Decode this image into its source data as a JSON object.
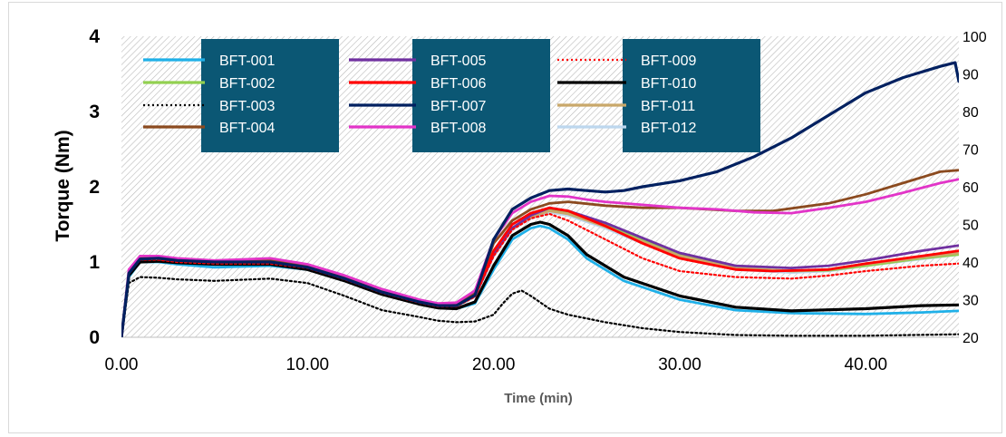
{
  "chart_data": {
    "type": "line",
    "title": "",
    "xlabel": "Time (min)",
    "ylabel": "Torque (Nm)",
    "xlim": [
      0,
      45
    ],
    "ylim": [
      0,
      4
    ],
    "y2lim": [
      20,
      100
    ],
    "xticks": [
      "0.00",
      "10.00",
      "20.00",
      "30.00",
      "40.00"
    ],
    "yticks": [
      "0",
      "1",
      "2",
      "3",
      "4"
    ],
    "y2ticks": [
      "20",
      "30",
      "40",
      "50",
      "60",
      "70",
      "80",
      "90",
      "100"
    ],
    "legend": "top",
    "grid": false,
    "background": "diagonal-hatch",
    "series": [
      {
        "name": "BFT-001",
        "color": "#1fb0e8",
        "dash": "solid",
        "x": [
          0,
          0.4,
          1,
          2,
          3,
          5,
          8,
          10,
          12,
          14,
          16,
          17,
          18,
          19,
          20,
          21,
          22,
          22.5,
          23,
          24,
          25,
          27,
          30,
          33,
          36,
          40,
          43,
          45
        ],
        "y": [
          0,
          0.8,
          1.0,
          1.0,
          0.97,
          0.93,
          0.95,
          0.9,
          0.75,
          0.58,
          0.45,
          0.4,
          0.38,
          0.45,
          0.9,
          1.3,
          1.45,
          1.48,
          1.45,
          1.3,
          1.05,
          0.75,
          0.5,
          0.36,
          0.32,
          0.31,
          0.33,
          0.35
        ]
      },
      {
        "name": "BFT-002",
        "color": "#92d050",
        "dash": "solid",
        "x": [
          0,
          0.4,
          1,
          2,
          3,
          5,
          8,
          10,
          12,
          14,
          16,
          17,
          18,
          19,
          20,
          21,
          22,
          23,
          24,
          26,
          28,
          30,
          33,
          36,
          38,
          40,
          43,
          45
        ],
        "y": [
          0,
          0.85,
          1.04,
          1.05,
          1.02,
          1.0,
          1.0,
          0.93,
          0.78,
          0.6,
          0.47,
          0.42,
          0.42,
          0.55,
          1.1,
          1.45,
          1.62,
          1.7,
          1.66,
          1.5,
          1.3,
          1.1,
          0.92,
          0.88,
          0.89,
          0.95,
          1.05,
          1.1
        ]
      },
      {
        "name": "BFT-003",
        "color": "#000000",
        "dash": "dot",
        "x": [
          0,
          0.4,
          1,
          2,
          3,
          5,
          8,
          10,
          12,
          14,
          16,
          17,
          18,
          19,
          20,
          20.5,
          21,
          21.5,
          22,
          23,
          24,
          26,
          28,
          30,
          33,
          36,
          40,
          45
        ],
        "y": [
          0,
          0.72,
          0.8,
          0.79,
          0.77,
          0.75,
          0.78,
          0.72,
          0.55,
          0.36,
          0.27,
          0.22,
          0.2,
          0.21,
          0.3,
          0.45,
          0.58,
          0.62,
          0.55,
          0.38,
          0.3,
          0.2,
          0.12,
          0.07,
          0.03,
          0.02,
          0.02,
          0.04
        ]
      },
      {
        "name": "BFT-004",
        "color": "#8b4a1f",
        "dash": "solid",
        "x": [
          0,
          0.4,
          1,
          2,
          3,
          5,
          8,
          10,
          12,
          14,
          16,
          17,
          18,
          19,
          20,
          21,
          22,
          23,
          24,
          26,
          28,
          30,
          33,
          35,
          38,
          40,
          42,
          44,
          45
        ],
        "y": [
          0,
          0.85,
          1.05,
          1.05,
          1.03,
          1.0,
          1.02,
          0.95,
          0.8,
          0.62,
          0.48,
          0.43,
          0.44,
          0.6,
          1.25,
          1.55,
          1.7,
          1.78,
          1.8,
          1.75,
          1.72,
          1.72,
          1.68,
          1.68,
          1.78,
          1.9,
          2.05,
          2.2,
          2.22
        ]
      },
      {
        "name": "BFT-005",
        "color": "#7030a0",
        "dash": "solid",
        "x": [
          0,
          0.4,
          1,
          2,
          3,
          5,
          8,
          10,
          12,
          14,
          16,
          17,
          18,
          19,
          20,
          21,
          22,
          23,
          24,
          26,
          28,
          30,
          33,
          36,
          38,
          40,
          43,
          45
        ],
        "y": [
          0,
          0.85,
          1.04,
          1.05,
          1.02,
          1.0,
          1.0,
          0.93,
          0.78,
          0.6,
          0.47,
          0.42,
          0.42,
          0.55,
          1.1,
          1.45,
          1.62,
          1.72,
          1.68,
          1.52,
          1.32,
          1.12,
          0.95,
          0.92,
          0.95,
          1.02,
          1.15,
          1.22
        ]
      },
      {
        "name": "BFT-006",
        "color": "#ff0000",
        "dash": "solid",
        "x": [
          0,
          0.4,
          1,
          2,
          3,
          5,
          8,
          10,
          12,
          14,
          16,
          17,
          18,
          19,
          20,
          21,
          22,
          23,
          24,
          26,
          28,
          30,
          33,
          35,
          38,
          40,
          43,
          45
        ],
        "y": [
          0,
          0.85,
          1.05,
          1.05,
          1.02,
          1.0,
          1.0,
          0.93,
          0.78,
          0.6,
          0.47,
          0.42,
          0.42,
          0.56,
          1.15,
          1.5,
          1.65,
          1.72,
          1.68,
          1.48,
          1.25,
          1.05,
          0.9,
          0.88,
          0.9,
          0.98,
          1.08,
          1.15
        ]
      },
      {
        "name": "BFT-007",
        "color": "#002060",
        "dash": "solid",
        "x": [
          0,
          0.4,
          1,
          2,
          3,
          5,
          8,
          10,
          12,
          14,
          16,
          17,
          18,
          19,
          20,
          21,
          22,
          23,
          24,
          25,
          26,
          27,
          28,
          30,
          32,
          34,
          36,
          38,
          40,
          42,
          44,
          44.8,
          45
        ],
        "y": [
          0,
          0.85,
          1.04,
          1.05,
          1.02,
          1.0,
          1.0,
          0.93,
          0.78,
          0.6,
          0.47,
          0.42,
          0.42,
          0.56,
          1.3,
          1.7,
          1.85,
          1.95,
          1.97,
          1.95,
          1.93,
          1.95,
          2.0,
          2.08,
          2.2,
          2.4,
          2.65,
          2.95,
          3.25,
          3.45,
          3.6,
          3.65,
          3.4
        ]
      },
      {
        "name": "BFT-008",
        "color": "#e234c8",
        "dash": "solid",
        "x": [
          0,
          0.4,
          1,
          2,
          3,
          5,
          8,
          10,
          12,
          14,
          16,
          17,
          18,
          19,
          20,
          21,
          22,
          23,
          24,
          25,
          26,
          28,
          30,
          32,
          34,
          36,
          38,
          40,
          42,
          44,
          45
        ],
        "y": [
          0,
          0.9,
          1.08,
          1.08,
          1.05,
          1.02,
          1.05,
          0.97,
          0.82,
          0.64,
          0.5,
          0.45,
          0.46,
          0.62,
          1.3,
          1.65,
          1.8,
          1.88,
          1.87,
          1.83,
          1.8,
          1.76,
          1.72,
          1.7,
          1.66,
          1.65,
          1.72,
          1.8,
          1.92,
          2.05,
          2.1
        ]
      },
      {
        "name": "BFT-009",
        "color": "#ff0000",
        "dash": "dot",
        "x": [
          0,
          0.4,
          1,
          2,
          3,
          5,
          8,
          10,
          12,
          14,
          16,
          17,
          18,
          19,
          20,
          21,
          22,
          23,
          24,
          26,
          28,
          30,
          33,
          36,
          38,
          40,
          43,
          45
        ],
        "y": [
          0,
          0.85,
          1.03,
          1.03,
          1.0,
          0.98,
          0.98,
          0.92,
          0.77,
          0.59,
          0.46,
          0.41,
          0.41,
          0.54,
          1.08,
          1.43,
          1.58,
          1.64,
          1.55,
          1.3,
          1.05,
          0.88,
          0.8,
          0.78,
          0.82,
          0.88,
          0.95,
          0.98
        ]
      },
      {
        "name": "BFT-010",
        "color": "#000000",
        "dash": "solid",
        "x": [
          0,
          0.4,
          1,
          2,
          3,
          5,
          8,
          10,
          12,
          14,
          16,
          17,
          18,
          19,
          20,
          21,
          22,
          22.5,
          23,
          24,
          25,
          27,
          30,
          33,
          36,
          40,
          43,
          45
        ],
        "y": [
          0,
          0.82,
          1.0,
          1.01,
          0.99,
          0.97,
          0.97,
          0.9,
          0.75,
          0.57,
          0.44,
          0.39,
          0.38,
          0.47,
          0.95,
          1.35,
          1.5,
          1.53,
          1.5,
          1.35,
          1.1,
          0.8,
          0.55,
          0.4,
          0.35,
          0.38,
          0.42,
          0.43
        ]
      },
      {
        "name": "BFT-011",
        "color": "#c9a86a",
        "dash": "solid",
        "x": [
          0,
          0.4,
          1,
          2,
          3,
          5,
          8,
          10,
          12,
          14,
          16,
          17,
          18,
          19,
          20,
          21,
          22,
          23,
          24,
          26,
          28,
          30,
          33,
          36,
          38,
          40,
          43,
          45
        ],
        "y": [
          0,
          0.85,
          1.04,
          1.04,
          1.02,
          1.0,
          1.0,
          0.93,
          0.78,
          0.6,
          0.47,
          0.42,
          0.42,
          0.55,
          1.1,
          1.45,
          1.6,
          1.68,
          1.64,
          1.47,
          1.27,
          1.08,
          0.92,
          0.88,
          0.9,
          0.97,
          1.06,
          1.12
        ]
      },
      {
        "name": "BFT-012",
        "color": "#bdd7ee",
        "dash": "solid",
        "x": [
          0,
          0.4,
          1,
          2,
          3,
          5,
          8,
          10,
          12,
          14,
          16,
          17,
          18,
          19,
          20,
          21,
          22,
          23,
          24,
          26,
          28,
          30,
          33,
          36,
          38,
          40,
          43,
          45
        ],
        "y": [
          0,
          0.85,
          1.03,
          1.03,
          1.01,
          0.99,
          0.99,
          0.92,
          0.77,
          0.59,
          0.46,
          0.41,
          0.41,
          0.54,
          1.08,
          1.43,
          1.58,
          1.66,
          1.62,
          1.45,
          1.25,
          1.06,
          0.9,
          0.86,
          0.88,
          0.95,
          1.04,
          1.1
        ]
      }
    ]
  }
}
